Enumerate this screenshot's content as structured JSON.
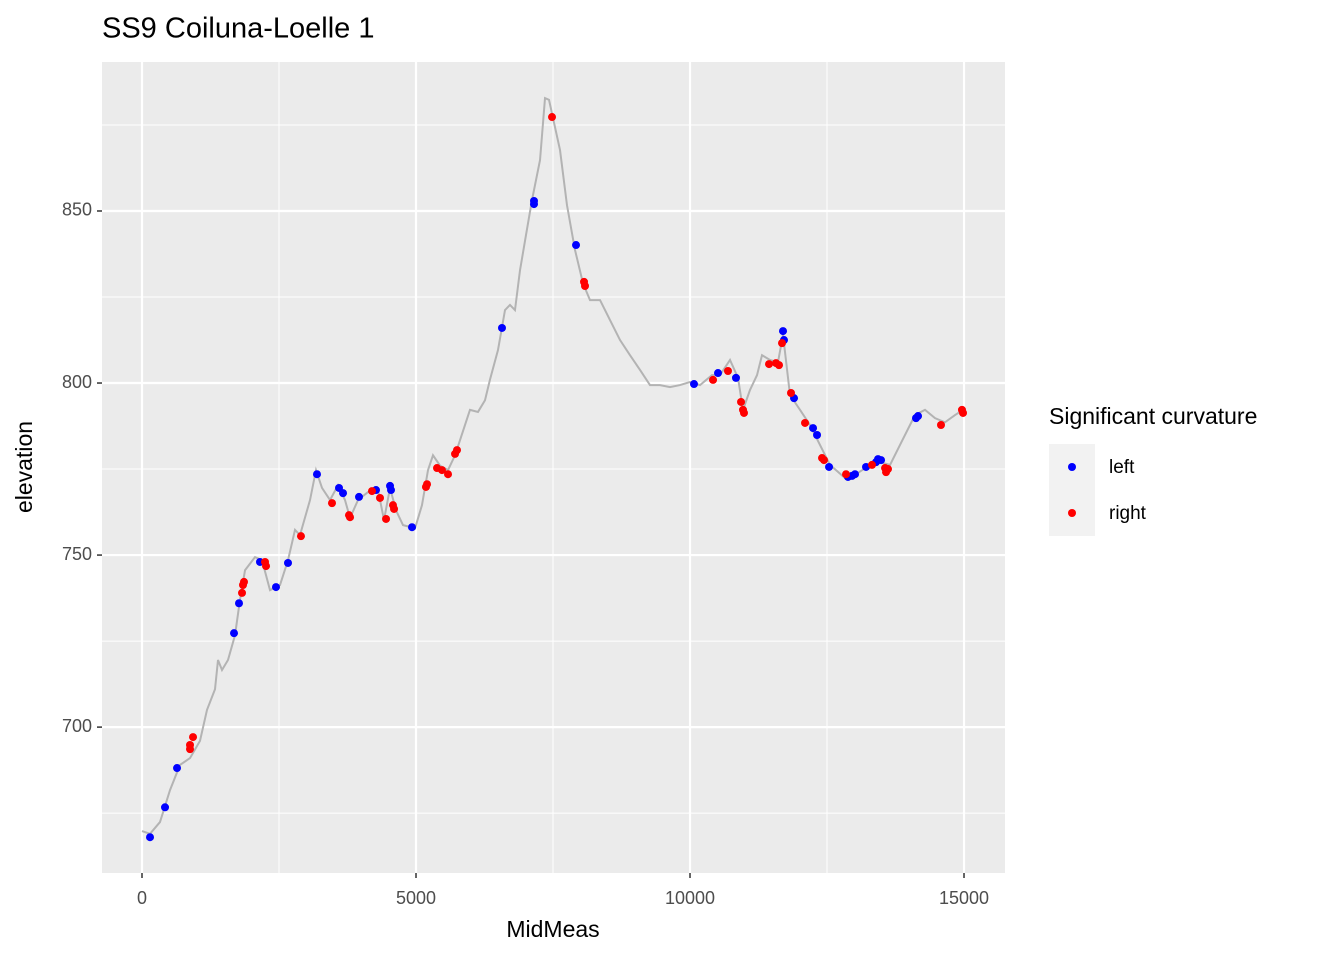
{
  "chart_data": {
    "type": "scatter",
    "title": "SS9 Coiluna-Loelle 1",
    "x_label": "MidMeas",
    "y_label": "elevation",
    "legend_title": "Significant curvature",
    "xlim": [
      -730,
      15748
    ],
    "ylim": [
      657.6,
      893.3
    ],
    "xticks": [
      0,
      5000,
      10000,
      15000
    ],
    "yticks": [
      700,
      750,
      800,
      850
    ],
    "xminorticks": [
      2500,
      7500,
      12500
    ],
    "yminorticks": [
      675,
      725,
      775,
      825,
      875
    ],
    "grid": true,
    "legend": "right",
    "series": [
      {
        "type": "line",
        "color": "#b3b3b3",
        "x": [
          0,
          146,
          328,
          511,
          693,
          876,
          1058,
          1186,
          1332,
          1387,
          1460,
          1569,
          1697,
          1788,
          1880,
          2062,
          2190,
          2336,
          2518,
          2664,
          2792,
          2883,
          3066,
          3175,
          3285,
          3431,
          3577,
          3704,
          3796,
          3942,
          4124,
          4307,
          4416,
          4526,
          4635,
          4763,
          4982,
          5109,
          5219,
          5310,
          5438,
          5584,
          5712,
          5803,
          5985,
          6131,
          6259,
          6350,
          6496,
          6624,
          6715,
          6806,
          6898,
          7007,
          7117,
          7263,
          7354,
          7427,
          7500,
          7628,
          7755,
          7901,
          8047,
          8175,
          8358,
          8540,
          8723,
          8905,
          9088,
          9270,
          9453,
          9635,
          9818,
          10000,
          10182,
          10401,
          10547,
          10730,
          10876,
          10967,
          11095,
          11223,
          11314,
          11460,
          11606,
          11697,
          11825,
          12007,
          12190,
          12372,
          12555,
          12828,
          13011,
          13285,
          13467,
          13650,
          13832,
          14106,
          14288,
          14471,
          14653,
          14836,
          14982
        ],
        "values": [
          669.8,
          669,
          672.4,
          681.7,
          689,
          691,
          696,
          705,
          711,
          719.5,
          716.6,
          719.5,
          726.7,
          737,
          745.6,
          749.4,
          748.5,
          739.8,
          741.3,
          748.5,
          757.3,
          755.8,
          766,
          774.7,
          769.5,
          766,
          770.3,
          766,
          760.8,
          766,
          768.3,
          768.9,
          760.2,
          769.5,
          763,
          758.7,
          757.8,
          764.5,
          774.7,
          779,
          776,
          774.7,
          779,
          783.4,
          792.2,
          791.6,
          795,
          801,
          809.6,
          821.2,
          822.7,
          821.2,
          832.8,
          843,
          853.2,
          864.8,
          882.8,
          882.3,
          877,
          867.7,
          851.7,
          838.7,
          829,
          824.1,
          824.1,
          818.3,
          812.5,
          808.1,
          803.8,
          799.4,
          799.4,
          798.8,
          799.4,
          800.3,
          799.4,
          802.3,
          802.3,
          806.7,
          801.5,
          792.2,
          798,
          802.3,
          808.1,
          806.7,
          806.1,
          814,
          796.5,
          792.2,
          787.8,
          782,
          776.2,
          772.4,
          773.3,
          776.2,
          777,
          776.2,
          782,
          790.7,
          792.2,
          789.8,
          788.6,
          790.7,
          792.2
        ]
      },
      {
        "name": "left",
        "color": "#0000ff",
        "x": [
          146,
          420,
          639,
          1679,
          1770,
          2153,
          2445,
          2664,
          3193,
          3595,
          3668,
          3960,
          4270,
          4526,
          4544,
          4927,
          6569,
          7153,
          7153,
          7920,
          10073,
          10511,
          10839,
          11697,
          11715,
          11898,
          12245,
          12318,
          12537,
          12883,
          12956,
          13011,
          13212,
          13394,
          13431,
          13486,
          14124,
          14161
        ],
        "values": [
          668.0,
          676.7,
          688.1,
          727.3,
          736.0,
          748.0,
          740.7,
          747.7,
          773.5,
          769.5,
          768.0,
          766.9,
          768.9,
          770.1,
          768.9,
          758.1,
          816.0,
          852.9,
          852.0,
          840.1,
          799.7,
          802.9,
          801.5,
          815.1,
          812.5,
          795.6,
          786.9,
          784.9,
          775.6,
          772.7,
          773.0,
          773.5,
          775.6,
          777.0,
          777.9,
          777.6,
          789.8,
          790.4
        ]
      },
      {
        "name": "right",
        "color": "#ff0000",
        "x": [
          931,
          876,
          876,
          1825,
          1843,
          1861,
          2245,
          2263,
          2901,
          3467,
          3777,
          3796,
          4197,
          4343,
          4453,
          4580,
          4599,
          5182,
          5201,
          5383,
          5474,
          5584,
          5712,
          5748,
          7482,
          8066,
          8084,
          10420,
          10693,
          10931,
          10967,
          10985,
          11442,
          11569,
          11624,
          11679,
          11843,
          12099,
          12409,
          12445,
          12847,
          13321,
          13559,
          13577,
          13613,
          14580,
          14963,
          14982
        ],
        "values": [
          697.1,
          694.8,
          693.6,
          739.0,
          741.3,
          742.2,
          748.0,
          746.8,
          755.5,
          765.1,
          761.6,
          761.0,
          768.6,
          766.6,
          760.5,
          764.5,
          763.4,
          769.8,
          770.6,
          775.3,
          774.7,
          773.5,
          779.4,
          780.5,
          877.3,
          829.4,
          828.2,
          800.9,
          803.5,
          794.5,
          792.2,
          791.3,
          805.5,
          805.8,
          805.2,
          811.6,
          797.1,
          788.4,
          778.2,
          777.6,
          773.5,
          776.2,
          775.3,
          774.1,
          775.0,
          787.8,
          792.2,
          791.3
        ]
      }
    ]
  }
}
